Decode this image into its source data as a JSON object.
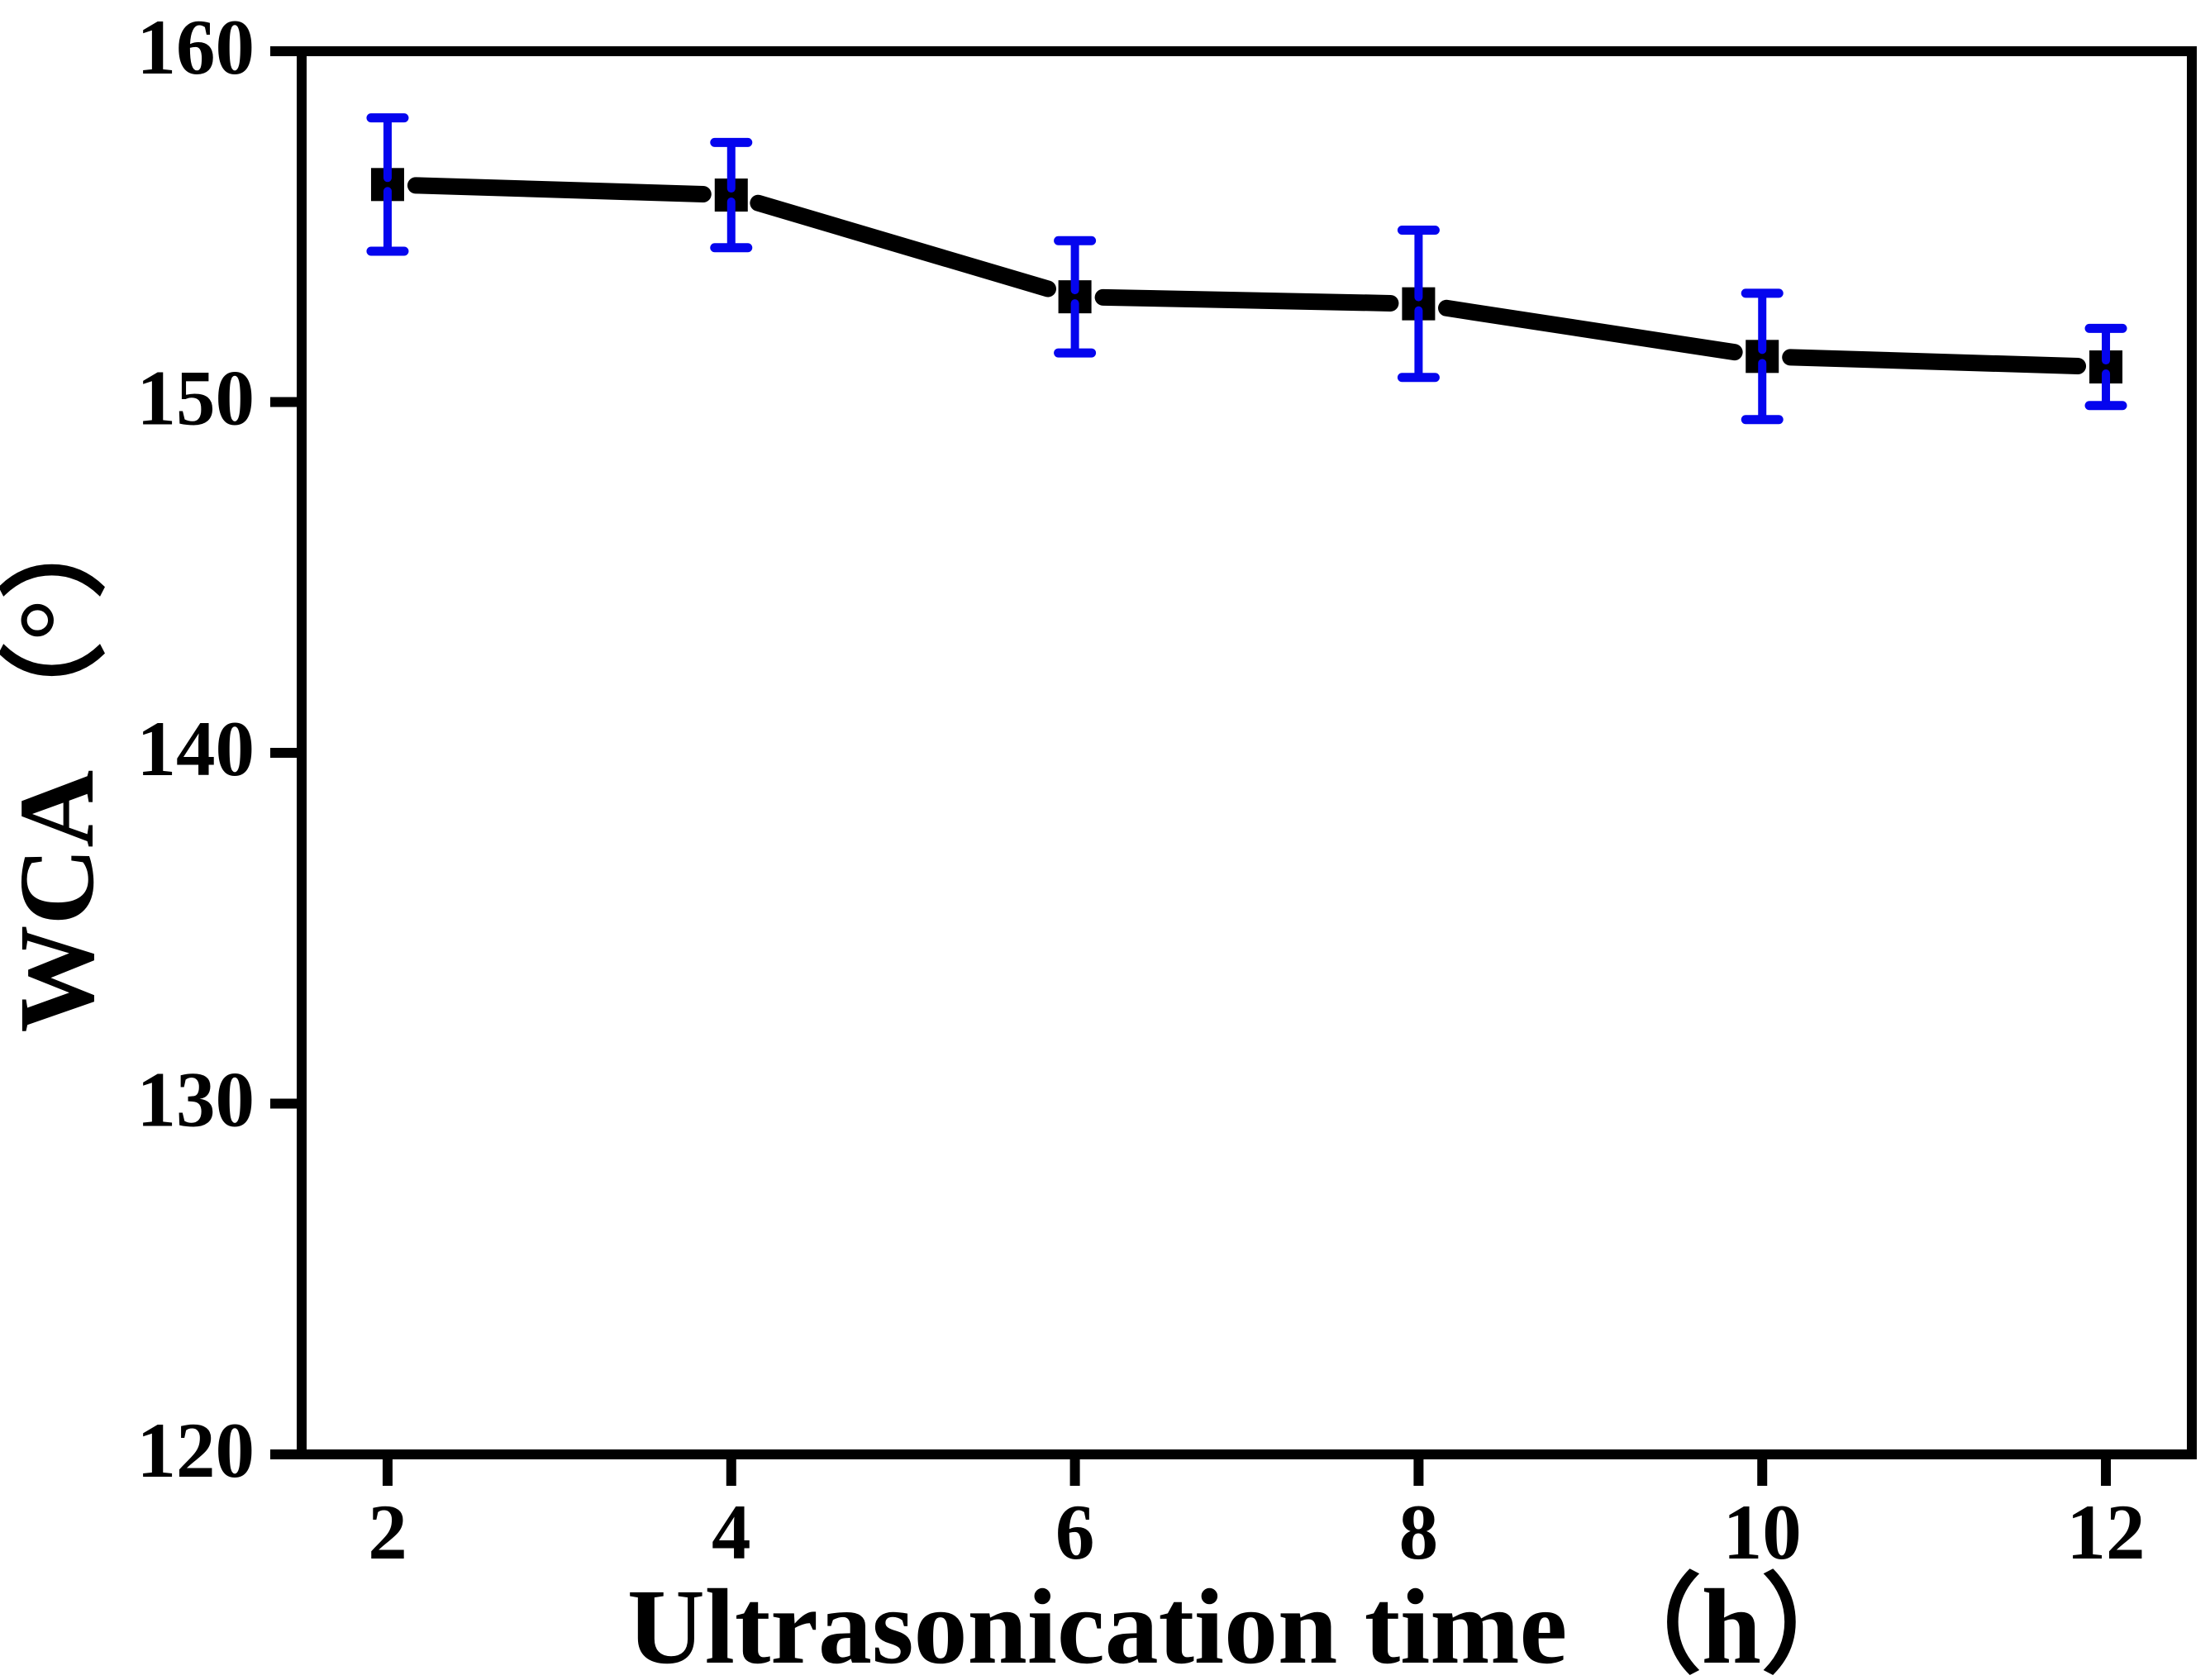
{
  "figure": {
    "background": "#ffffff",
    "frame_color": "#000000",
    "line_color": "#000000",
    "marker_color": "#000000",
    "marker_shape": "filled-square",
    "error_bar_color": "#0505ee"
  },
  "chart_data": {
    "type": "line",
    "title": "",
    "xlabel": "Ultrasonication time （h）",
    "ylabel": "WCA （°）",
    "x": [
      2,
      4,
      6,
      8,
      10,
      12
    ],
    "series": [
      {
        "name": "WCA",
        "values": [
          156.2,
          155.9,
          153.0,
          152.8,
          151.3,
          151.0
        ],
        "error": [
          1.9,
          1.5,
          1.6,
          2.1,
          1.8,
          1.1
        ]
      }
    ],
    "xlim": [
      1.5,
      12.5
    ],
    "ylim": [
      120,
      160
    ],
    "xticks": [
      2,
      4,
      6,
      8,
      10,
      12
    ],
    "yticks": [
      120,
      130,
      140,
      150,
      160
    ],
    "grid": false,
    "legend": "none"
  }
}
